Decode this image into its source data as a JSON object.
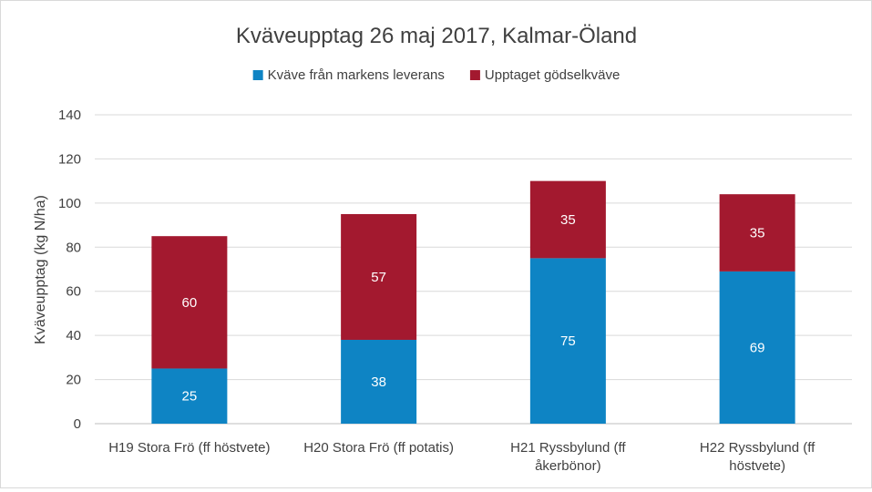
{
  "chart_data": {
    "type": "bar",
    "stacked": true,
    "title": "Kväveupptag 26 maj 2017, Kalmar-Öland",
    "xlabel": "",
    "ylabel": "Kväveupptag (kg N/ha)",
    "ylim": [
      0,
      140
    ],
    "yticks": [
      0,
      20,
      40,
      60,
      80,
      100,
      120,
      140
    ],
    "grid": true,
    "legend_position": "top",
    "categories": [
      [
        "H19 Stora Frö (ff  höstvete)"
      ],
      [
        "H20 Stora Frö (ff  potatis)"
      ],
      [
        "H21 Ryssbylund (ff",
        "åkerbönor)"
      ],
      [
        "H22 Ryssbylund (ff",
        "höstvete)"
      ]
    ],
    "series": [
      {
        "name": "Kväve från markens leverans",
        "color": "#0e84c4",
        "values": [
          25,
          38,
          75,
          69
        ]
      },
      {
        "name": "Upptaget gödselkväve",
        "color": "#a3192f",
        "values": [
          60,
          57,
          35,
          35
        ]
      }
    ]
  }
}
